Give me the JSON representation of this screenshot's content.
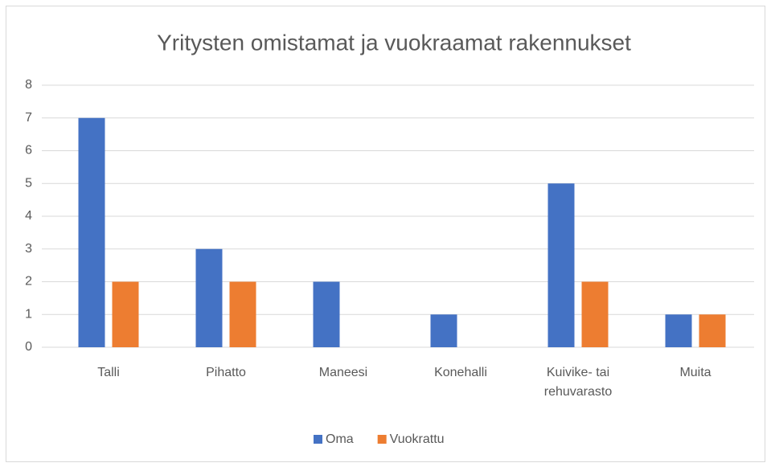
{
  "chart_data": {
    "type": "bar",
    "title": "Yritysten omistamat ja vuokraamat rakennukset",
    "categories": [
      "Talli",
      "Pihatto",
      "Maneesi",
      "Konehalli",
      "Kuivike- tai rehuvarasto",
      "Muita"
    ],
    "series": [
      {
        "name": "Oma",
        "color": "#4472c4",
        "values": [
          7,
          3,
          2,
          1,
          5,
          1
        ]
      },
      {
        "name": "Vuokrattu",
        "color": "#ed7d31",
        "values": [
          2,
          2,
          0,
          0,
          2,
          1
        ]
      }
    ],
    "ylim": [
      0,
      8
    ],
    "yticks": [
      0,
      1,
      2,
      3,
      4,
      5,
      6,
      7,
      8
    ],
    "grid": true,
    "legend": "bottom"
  }
}
